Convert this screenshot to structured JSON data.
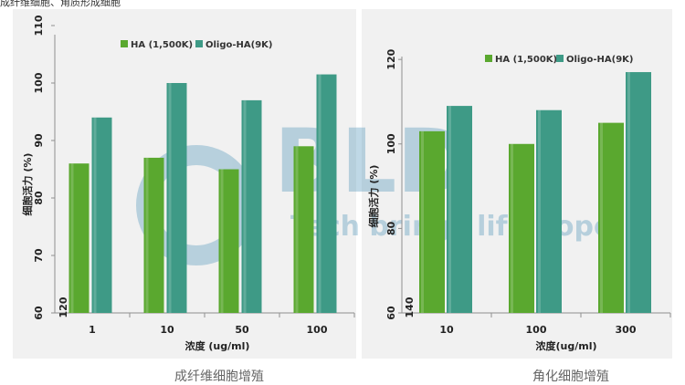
{
  "header": {
    "text": "成纤维细胞、角质形成细胞"
  },
  "watermark": {
    "logo": "BLD",
    "slogan": "Tech brings life hope"
  },
  "colors": {
    "ha": "#5aa82f",
    "oligo": "#3e9a86",
    "panel": "#f1f1f1"
  },
  "chart_data": [
    {
      "type": "bar",
      "caption": "成纤维细胞增殖",
      "xlabel": "浓度 (ug/ml)",
      "ylabel": "细胞活力 (%)",
      "categories": [
        "1",
        "10",
        "50",
        "100"
      ],
      "ytick_labels": [
        "60",
        "70",
        "80",
        "90",
        "100",
        "110"
      ],
      "ytick_values": [
        60,
        70,
        80,
        90,
        100,
        110
      ],
      "extra_tick_label": "120",
      "ylim": [
        60,
        110
      ],
      "legend_position": "top-right",
      "series": [
        {
          "name": "HA (1,500K)",
          "color": "#5aa82f",
          "values": [
            86,
            87,
            85,
            89
          ]
        },
        {
          "name": "Oligo-HA(9K)",
          "color": "#3e9a86",
          "values": [
            94,
            100,
            97,
            101.5
          ]
        }
      ]
    },
    {
      "type": "bar",
      "caption": "角化细胞增殖",
      "xlabel": "浓度(ug/ml)",
      "ylabel": "细胞活力 (%)",
      "categories": [
        "10",
        "100",
        "300"
      ],
      "ytick_labels": [
        "60",
        "80",
        "100",
        "120"
      ],
      "ytick_values": [
        60,
        80,
        100,
        120
      ],
      "extra_tick_label": "140",
      "ylim": [
        60,
        125
      ],
      "legend_position": "top-right",
      "series": [
        {
          "name": "HA (1,500K)",
          "color": "#5aa82f",
          "values": [
            103,
            100,
            105
          ]
        },
        {
          "name": "Oligo-HA(9K)",
          "color": "#3e9a86",
          "values": [
            109,
            108,
            117
          ]
        }
      ]
    }
  ]
}
